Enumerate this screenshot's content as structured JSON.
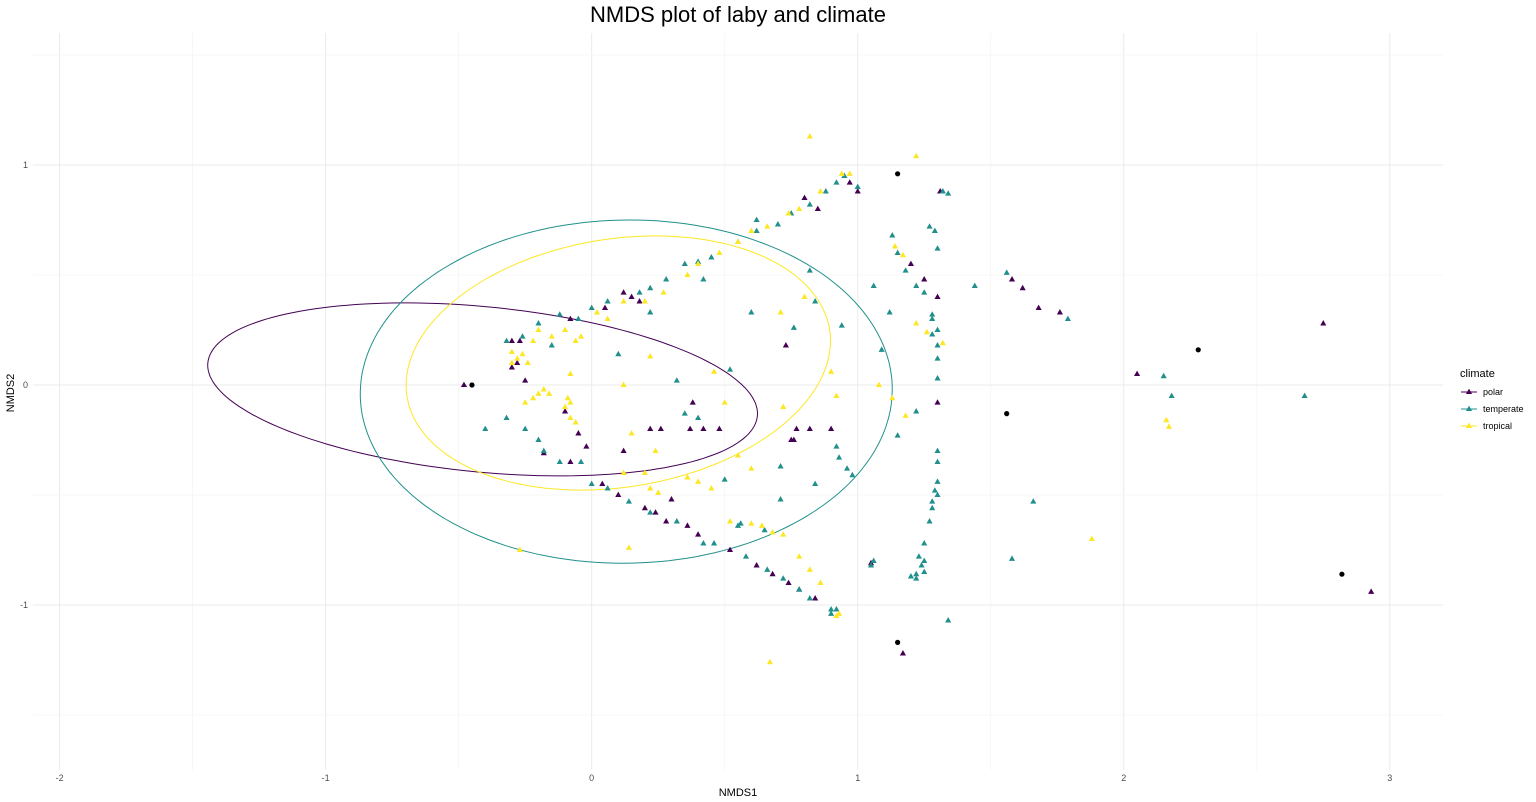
{
  "chart_data": {
    "type": "scatter",
    "title": "NMDS plot of laby and climate",
    "xlabel": "NMDS1",
    "ylabel": "NMDS2",
    "xlim": [
      -2.1,
      3.2
    ],
    "ylim": [
      -1.75,
      1.6
    ],
    "x_ticks": [
      -2,
      -1,
      0,
      1,
      2,
      3
    ],
    "y_ticks": [
      -1,
      0,
      1
    ],
    "x_tick_labels": [
      "-2",
      "-1",
      "0",
      "1",
      "2",
      "3"
    ],
    "y_tick_labels": [
      "-1",
      "0",
      "1"
    ],
    "grid": true,
    "legend": {
      "title": "climate",
      "position": "right"
    },
    "series": [
      {
        "name": "polar",
        "color": "#440154",
        "points": [
          [
            -0.48,
            0.0
          ],
          [
            -0.3,
            0.2
          ],
          [
            -0.27,
            0.2
          ],
          [
            -0.28,
            0.1
          ],
          [
            -0.25,
            0.02
          ],
          [
            -0.3,
            0.08
          ],
          [
            -0.1,
            -0.12
          ],
          [
            -0.05,
            -0.22
          ],
          [
            -0.02,
            -0.28
          ],
          [
            -0.08,
            0.3
          ],
          [
            0.05,
            0.35
          ],
          [
            0.12,
            0.42
          ],
          [
            0.15,
            0.4
          ],
          [
            0.18,
            0.38
          ],
          [
            0.8,
            0.85
          ],
          [
            0.85,
            0.8
          ],
          [
            1.0,
            0.88
          ],
          [
            0.97,
            0.92
          ],
          [
            0.3,
            -0.52
          ],
          [
            0.28,
            -0.62
          ],
          [
            0.24,
            -0.58
          ],
          [
            0.36,
            -0.64
          ],
          [
            0.4,
            -0.68
          ],
          [
            0.52,
            -0.75
          ],
          [
            0.62,
            -0.82
          ],
          [
            0.68,
            -0.86
          ],
          [
            0.74,
            -0.9
          ],
          [
            0.78,
            -0.93
          ],
          [
            0.84,
            -0.97
          ],
          [
            -0.08,
            -0.35
          ],
          [
            0.04,
            -0.45
          ],
          [
            0.1,
            -0.5
          ],
          [
            0.2,
            -0.56
          ],
          [
            1.2,
            0.55
          ],
          [
            1.25,
            0.48
          ],
          [
            1.3,
            0.4
          ],
          [
            1.58,
            0.48
          ],
          [
            1.62,
            0.44
          ],
          [
            1.68,
            0.35
          ],
          [
            1.76,
            0.33
          ],
          [
            1.31,
            0.88
          ],
          [
            0.73,
            0.18
          ],
          [
            0.22,
            -0.2
          ],
          [
            0.26,
            -0.2
          ],
          [
            0.37,
            -0.2
          ],
          [
            0.42,
            -0.2
          ],
          [
            0.48,
            -0.2
          ],
          [
            0.77,
            -0.2
          ],
          [
            0.82,
            -0.2
          ],
          [
            0.9,
            -0.2
          ],
          [
            0.76,
            -0.25
          ],
          [
            0.38,
            -0.08
          ],
          [
            0.75,
            -0.25
          ],
          [
            1.17,
            -1.22
          ],
          [
            1.3,
            -0.08
          ],
          [
            2.05,
            0.05
          ],
          [
            2.75,
            0.28
          ],
          [
            2.93,
            -0.94
          ],
          [
            1.05,
            -0.81
          ],
          [
            0.12,
            -0.3
          ],
          [
            -0.18,
            -0.31
          ]
        ]
      },
      {
        "name": "temperate",
        "color": "#21908c",
        "points": [
          [
            -0.4,
            -0.2
          ],
          [
            -0.32,
            -0.15
          ],
          [
            -0.25,
            -0.2
          ],
          [
            -0.2,
            -0.25
          ],
          [
            -0.18,
            -0.3
          ],
          [
            -0.12,
            -0.35
          ],
          [
            -0.32,
            0.2
          ],
          [
            -0.26,
            0.22
          ],
          [
            -0.2,
            0.28
          ],
          [
            -0.12,
            0.32
          ],
          [
            -0.05,
            0.3
          ],
          [
            0.0,
            0.35
          ],
          [
            0.06,
            0.38
          ],
          [
            0.18,
            0.42
          ],
          [
            0.22,
            0.44
          ],
          [
            0.28,
            0.48
          ],
          [
            0.35,
            0.55
          ],
          [
            0.4,
            0.56
          ],
          [
            0.45,
            0.58
          ],
          [
            0.55,
            0.65
          ],
          [
            0.62,
            0.7
          ],
          [
            0.7,
            0.73
          ],
          [
            0.75,
            0.78
          ],
          [
            0.82,
            0.82
          ],
          [
            0.88,
            0.88
          ],
          [
            0.92,
            0.92
          ],
          [
            1.0,
            0.9
          ],
          [
            0.95,
            0.95
          ],
          [
            0.62,
            0.75
          ],
          [
            0.0,
            -0.45
          ],
          [
            0.06,
            -0.47
          ],
          [
            0.14,
            -0.53
          ],
          [
            0.22,
            -0.58
          ],
          [
            0.32,
            -0.62
          ],
          [
            0.42,
            -0.72
          ],
          [
            0.46,
            -0.72
          ],
          [
            0.58,
            -0.78
          ],
          [
            0.66,
            -0.84
          ],
          [
            0.72,
            -0.88
          ],
          [
            0.78,
            -0.93
          ],
          [
            0.82,
            -0.97
          ],
          [
            0.9,
            -1.04
          ],
          [
            0.92,
            -1.02
          ],
          [
            1.06,
            -0.8
          ],
          [
            1.05,
            -0.82
          ],
          [
            1.15,
            0.6
          ],
          [
            1.13,
            0.68
          ],
          [
            1.18,
            0.52
          ],
          [
            1.22,
            0.45
          ],
          [
            1.25,
            0.42
          ],
          [
            1.27,
            0.72
          ],
          [
            1.29,
            0.7
          ],
          [
            1.3,
            0.62
          ],
          [
            1.32,
            0.88
          ],
          [
            1.34,
            0.87
          ],
          [
            1.28,
            0.32
          ],
          [
            1.3,
            0.25
          ],
          [
            1.3,
            0.18
          ],
          [
            1.3,
            0.12
          ],
          [
            1.3,
            0.03
          ],
          [
            1.28,
            0.3
          ],
          [
            1.3,
            -0.3
          ],
          [
            1.3,
            -0.35
          ],
          [
            1.3,
            -0.44
          ],
          [
            1.29,
            -0.48
          ],
          [
            1.3,
            -0.5
          ],
          [
            1.28,
            -0.53
          ],
          [
            1.28,
            -0.56
          ],
          [
            1.27,
            -0.62
          ],
          [
            1.25,
            -0.72
          ],
          [
            1.23,
            -0.78
          ],
          [
            1.22,
            -0.86
          ],
          [
            1.2,
            -0.87
          ],
          [
            1.25,
            -0.8
          ],
          [
            1.24,
            -0.82
          ],
          [
            1.22,
            -0.88
          ],
          [
            1.25,
            -0.85
          ],
          [
            1.22,
            -0.12
          ],
          [
            1.15,
            -0.23
          ],
          [
            1.09,
            0.16
          ],
          [
            1.06,
            0.45
          ],
          [
            1.12,
            0.33
          ],
          [
            1.44,
            0.45
          ],
          [
            1.56,
            0.51
          ],
          [
            1.79,
            0.3
          ],
          [
            1.66,
            -0.53
          ],
          [
            1.58,
            -0.79
          ],
          [
            1.34,
            -1.07
          ],
          [
            2.15,
            0.04
          ],
          [
            2.18,
            -0.05
          ],
          [
            2.68,
            -0.05
          ],
          [
            0.52,
            0.07
          ],
          [
            0.71,
            -0.37
          ],
          [
            0.71,
            -0.52
          ],
          [
            0.65,
            -0.66
          ],
          [
            0.55,
            -0.64
          ],
          [
            0.84,
            0.38
          ],
          [
            0.94,
            0.27
          ],
          [
            0.76,
            0.26
          ],
          [
            0.82,
            0.52
          ],
          [
            0.6,
            0.33
          ],
          [
            0.42,
            0.48
          ],
          [
            0.92,
            -0.28
          ],
          [
            0.93,
            -0.33
          ],
          [
            0.96,
            -0.38
          ],
          [
            0.98,
            -0.41
          ],
          [
            0.84,
            -0.45
          ],
          [
            -0.04,
            -0.35
          ],
          [
            0.1,
            0.14
          ],
          [
            0.22,
            0.33
          ],
          [
            0.32,
            0.02
          ],
          [
            0.35,
            -0.13
          ],
          [
            0.4,
            -0.15
          ],
          [
            0.5,
            -0.43
          ],
          [
            0.56,
            -0.63
          ],
          [
            -0.15,
            0.18
          ],
          [
            0.9,
            -1.02
          ],
          [
            1.28,
            0.23
          ]
        ]
      },
      {
        "name": "tropical",
        "color": "#fde725",
        "points": [
          [
            -0.3,
            0.15
          ],
          [
            -0.28,
            0.12
          ],
          [
            -0.3,
            0.1
          ],
          [
            -0.26,
            0.14
          ],
          [
            -0.24,
            0.1
          ],
          [
            -0.22,
            0.2
          ],
          [
            -0.2,
            0.25
          ],
          [
            -0.15,
            0.22
          ],
          [
            -0.1,
            0.25
          ],
          [
            -0.06,
            0.2
          ],
          [
            -0.04,
            0.22
          ],
          [
            0.02,
            0.33
          ],
          [
            0.06,
            0.3
          ],
          [
            0.12,
            0.38
          ],
          [
            0.2,
            0.38
          ],
          [
            0.27,
            0.42
          ],
          [
            0.36,
            0.5
          ],
          [
            0.4,
            0.55
          ],
          [
            0.48,
            0.6
          ],
          [
            0.55,
            0.65
          ],
          [
            0.6,
            0.7
          ],
          [
            0.66,
            0.72
          ],
          [
            0.74,
            0.78
          ],
          [
            0.78,
            0.8
          ],
          [
            0.86,
            0.88
          ],
          [
            0.94,
            0.96
          ],
          [
            0.97,
            0.96
          ],
          [
            0.82,
            1.13
          ],
          [
            1.22,
            1.04
          ],
          [
            -0.25,
            -0.08
          ],
          [
            -0.22,
            -0.06
          ],
          [
            -0.2,
            -0.04
          ],
          [
            -0.18,
            -0.02
          ],
          [
            -0.16,
            -0.04
          ],
          [
            -0.09,
            -0.06
          ],
          [
            -0.08,
            0.05
          ],
          [
            -0.08,
            -0.08
          ],
          [
            -0.1,
            -0.1
          ],
          [
            -0.08,
            -0.15
          ],
          [
            -0.06,
            -0.17
          ],
          [
            0.12,
            -0.4
          ],
          [
            0.2,
            -0.4
          ],
          [
            0.22,
            -0.47
          ],
          [
            0.25,
            -0.49
          ],
          [
            0.45,
            -0.47
          ],
          [
            0.52,
            -0.62
          ],
          [
            0.6,
            -0.63
          ],
          [
            0.64,
            -0.64
          ],
          [
            0.68,
            -0.67
          ],
          [
            0.72,
            -0.68
          ],
          [
            0.78,
            -0.78
          ],
          [
            0.82,
            -0.84
          ],
          [
            0.86,
            -0.9
          ],
          [
            0.92,
            -1.05
          ],
          [
            0.93,
            -1.04
          ],
          [
            0.67,
            -1.26
          ],
          [
            -0.27,
            -0.75
          ],
          [
            0.14,
            -0.74
          ],
          [
            1.14,
            0.63
          ],
          [
            1.17,
            0.59
          ],
          [
            1.22,
            0.28
          ],
          [
            1.26,
            0.24
          ],
          [
            1.32,
            0.19
          ],
          [
            1.08,
            0.0
          ],
          [
            1.13,
            -0.06
          ],
          [
            1.18,
            -0.14
          ],
          [
            0.71,
            0.33
          ],
          [
            0.8,
            0.4
          ],
          [
            0.9,
            0.06
          ],
          [
            0.92,
            -0.05
          ],
          [
            0.55,
            -0.32
          ],
          [
            0.6,
            -0.38
          ],
          [
            0.46,
            0.06
          ],
          [
            0.22,
            0.13
          ],
          [
            0.12,
            0.0
          ],
          [
            0.15,
            -0.22
          ],
          [
            0.24,
            -0.3
          ],
          [
            0.36,
            -0.42
          ],
          [
            0.4,
            -0.44
          ],
          [
            0.72,
            -0.1
          ],
          [
            0.5,
            -0.08
          ],
          [
            2.16,
            -0.16
          ],
          [
            2.17,
            -0.19
          ],
          [
            1.88,
            -0.7
          ]
        ]
      }
    ],
    "extra_points": {
      "color": "#000000",
      "points": [
        [
          -0.45,
          0.0
        ],
        [
          1.15,
          0.96
        ],
        [
          1.56,
          -0.13
        ],
        [
          2.28,
          0.16
        ],
        [
          2.82,
          -0.86
        ],
        [
          1.15,
          -1.17
        ]
      ]
    },
    "ellipses": [
      {
        "group": "polar",
        "color": "#440154",
        "cx": -0.41,
        "cy": -0.02,
        "rx": 2.08,
        "ry": 0.75,
        "angle_deg": -7.0
      },
      {
        "group": "temperate",
        "color": "#21908c",
        "cx": 0.13,
        "cy": -0.03,
        "rx": 2.0,
        "ry": 1.56,
        "angle_deg": 1.5
      },
      {
        "group": "tropical",
        "color": "#fde725",
        "cx": 0.1,
        "cy": 0.1,
        "rx": 1.62,
        "ry": 1.12,
        "angle_deg": 14.0
      }
    ]
  }
}
